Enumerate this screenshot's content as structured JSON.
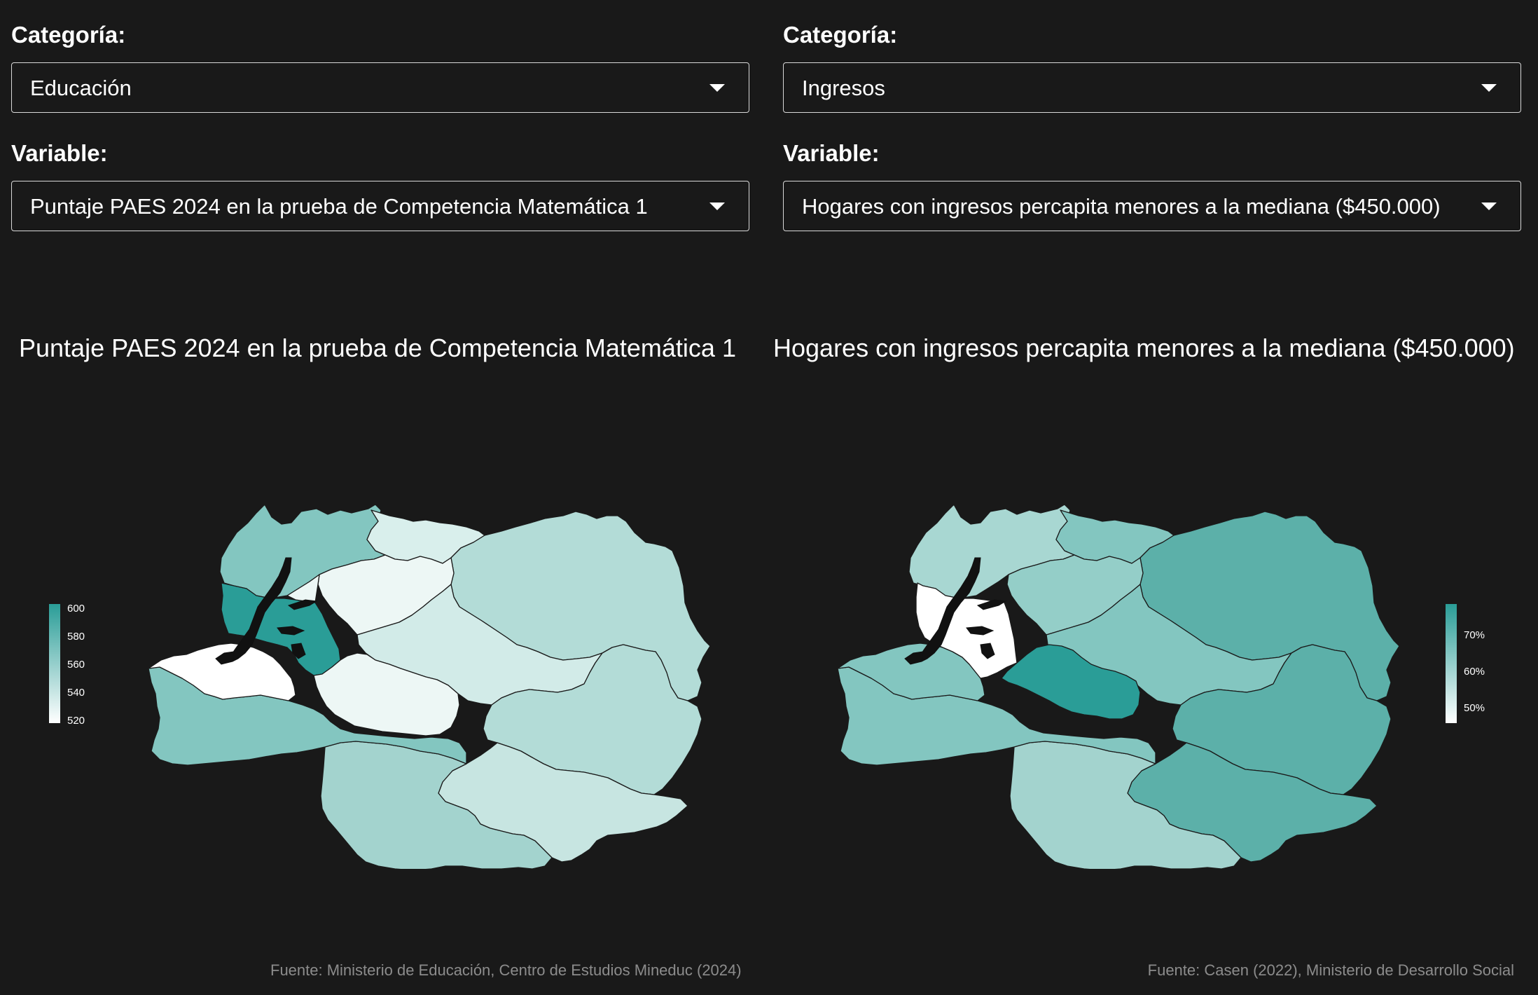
{
  "left": {
    "category_label": "Categoría:",
    "category_value": "Educación",
    "variable_label": "Variable:",
    "variable_value": "Puntaje PAES 2024 en la prueba de Competencia Matemática 1",
    "map_title": "Puntaje PAES 2024 en la prueba de Competencia Matemática 1",
    "legend_ticks": [
      "600",
      "580",
      "560",
      "540",
      "520"
    ],
    "source": "Fuente: Ministerio de Educación, Centro de Estudios Mineduc (2024)"
  },
  "right": {
    "category_label": "Categoría:",
    "category_value": "Ingresos",
    "variable_label": "Variable:",
    "variable_value": "Hogares con ingresos percapita menores a la mediana ($450.000)",
    "map_title": "Hogares con ingresos percapita menores a la mediana ($450.000)",
    "legend_ticks": [
      "70%",
      "60%",
      "50%"
    ],
    "source": "Fuente: Casen (2022), Ministerio de Desarrollo Social"
  },
  "colors": {
    "background": "#191919",
    "scale_high": "#2a9d97",
    "scale_low": "#ffffff",
    "border": "#1a1a1a"
  }
}
